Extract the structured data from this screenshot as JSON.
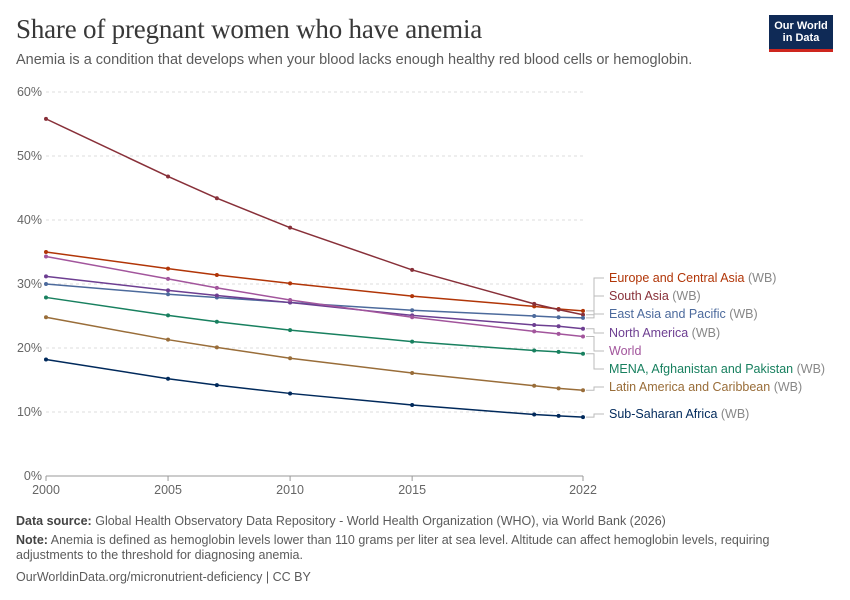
{
  "header": {
    "title": "Share of pregnant women who have anemia",
    "subtitle": "Anemia is a condition that develops when your blood lacks enough healthy red blood cells or hemoglobin.",
    "logo_line1": "Our World",
    "logo_line2": "in Data"
  },
  "footer": {
    "source_label": "Data source:",
    "source_text": "Global Health Observatory Data Repository - World Health Organization (WHO), via World Bank (2026)",
    "note_label": "Note:",
    "note_text": "Anemia is defined as hemoglobin levels lower than 110 grams per liter at sea level. Altitude can affect hemoglobin levels, requiring adjustments to the threshold for diagnosing anemia.",
    "url": "OurWorldinData.org/micronutrient-deficiency | CC BY"
  },
  "chart_data": {
    "type": "line",
    "title": "Share of pregnant women who have anemia",
    "x_ticks": [
      2000,
      2005,
      2010,
      2015,
      2022
    ],
    "y_ticks": [
      "0%",
      "10%",
      "20%",
      "30%",
      "40%",
      "50%",
      "60%"
    ],
    "xlim": [
      2000,
      2022
    ],
    "ylim": [
      0,
      60
    ],
    "grid": "horizontal dashed",
    "legend": "right, inline labels",
    "x": [
      2000,
      2005,
      2007,
      2010,
      2015,
      2020,
      2021,
      2022
    ],
    "series": [
      {
        "name": "Europe and Central Asia",
        "suffix": "(WB)",
        "color": "#b13507",
        "values": [
          35.0,
          32.4,
          31.4,
          30.1,
          28.1,
          26.5,
          26.1,
          25.8
        ]
      },
      {
        "name": "South Asia",
        "suffix": "(WB)",
        "color": "#883039",
        "values": [
          55.8,
          46.8,
          43.4,
          38.8,
          32.2,
          26.9,
          26.0,
          25.2
        ]
      },
      {
        "name": "East Asia and Pacific",
        "suffix": "(WB)",
        "color": "#4c6a9c",
        "values": [
          30.0,
          28.4,
          27.9,
          27.1,
          25.9,
          25.0,
          24.8,
          24.7
        ]
      },
      {
        "name": "North America",
        "suffix": "(WB)",
        "color": "#6d3e91",
        "values": [
          31.2,
          29.0,
          28.2,
          27.1,
          25.1,
          23.6,
          23.4,
          23.0
        ]
      },
      {
        "name": "World",
        "suffix": "",
        "color": "#a2559c",
        "values": [
          34.3,
          30.8,
          29.4,
          27.5,
          24.8,
          22.6,
          22.2,
          21.8
        ]
      },
      {
        "name": "MENA, Afghanistan and Pakistan",
        "suffix": "(WB)",
        "color": "#18805f",
        "values": [
          27.9,
          25.1,
          24.1,
          22.8,
          21.0,
          19.6,
          19.4,
          19.1
        ]
      },
      {
        "name": "Latin America and Caribbean",
        "suffix": "(WB)",
        "color": "#996d39",
        "values": [
          24.8,
          21.3,
          20.1,
          18.4,
          16.1,
          14.1,
          13.7,
          13.4
        ]
      },
      {
        "name": "Sub-Saharan Africa",
        "suffix": "(WB)",
        "color": "#00295b",
        "values": [
          18.2,
          15.2,
          14.2,
          12.9,
          11.1,
          9.6,
          9.4,
          9.2
        ]
      }
    ]
  }
}
